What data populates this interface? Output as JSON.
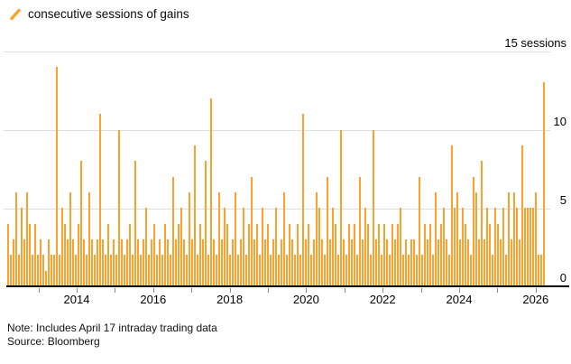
{
  "legend": {
    "label": "consecutive sessions of gains",
    "swatch_color": "#FCA12B",
    "swatch_icon": "slash-icon"
  },
  "axes": {
    "y_top_label": "15 sessions",
    "y_tick_labels": [
      "0",
      "5",
      "10"
    ],
    "x_tick_labels": [
      "2014",
      "2016",
      "2018",
      "2020",
      "2022",
      "2024",
      "2026"
    ]
  },
  "footer": {
    "note": "Note: Includes April 17 intraday trading data",
    "source": "Source: Bloomberg"
  },
  "colors": {
    "bar": "#FCA12B",
    "gridline": "#dedede",
    "axis_line": "#000000",
    "tick": "#8a8a8a",
    "background": "#ffffff"
  },
  "chart_data": {
    "type": "bar",
    "title": "consecutive sessions of gains",
    "ylabel": "sessions",
    "ylim": [
      0,
      15
    ],
    "y_ticks": [
      0,
      5,
      10,
      15
    ],
    "grid": "horizontal",
    "legend_position": "top-left",
    "x_axis_years_ticks": [
      2013,
      2014,
      2015,
      2016,
      2017,
      2018,
      2019,
      2020,
      2021,
      2022,
      2023,
      2024,
      2025,
      2026
    ],
    "x_axis_year_labels": [
      2014,
      2016,
      2018,
      2020,
      2022,
      2024,
      2026
    ],
    "x_start_year": 2012.2,
    "x_step_years": 0.0708,
    "values": [
      4,
      2,
      3,
      6,
      2,
      5,
      3,
      6,
      4,
      2,
      4,
      2,
      3,
      2,
      1,
      3,
      2,
      2,
      14,
      2,
      5,
      4,
      3,
      6,
      3,
      2,
      4,
      8,
      3,
      2,
      6,
      3,
      2,
      3,
      11,
      3,
      2,
      4,
      2,
      3,
      2,
      10,
      3,
      2,
      3,
      4,
      2,
      8,
      3,
      2,
      3,
      5,
      2,
      3,
      4,
      2,
      3,
      2,
      4,
      3,
      2,
      7,
      3,
      4,
      5,
      3,
      2,
      6,
      3,
      9,
      2,
      4,
      3,
      8,
      2,
      12,
      3,
      2,
      6,
      3,
      5,
      4,
      2,
      3,
      6,
      2,
      3,
      5,
      2,
      4,
      7,
      3,
      4,
      2,
      5,
      3,
      4,
      2,
      3,
      5,
      2,
      3,
      6,
      2,
      4,
      3,
      2,
      4,
      2,
      11,
      3,
      4,
      2,
      3,
      6,
      5,
      3,
      2,
      7,
      3,
      5,
      4,
      2,
      10,
      3,
      2,
      4,
      3,
      4,
      2,
      7,
      3,
      5,
      4,
      2,
      10,
      3,
      4,
      2,
      4,
      3,
      2,
      4,
      3,
      4,
      5,
      2,
      3,
      2,
      3,
      3,
      2,
      7,
      2,
      4,
      3,
      4,
      2,
      6,
      3,
      4,
      5,
      3,
      2,
      9,
      5,
      6,
      3,
      5,
      4,
      3,
      2,
      7,
      6,
      3,
      8,
      3,
      5,
      4,
      2,
      5,
      4,
      3,
      5,
      2,
      6,
      3,
      6,
      5,
      3,
      9,
      5,
      5,
      5,
      5,
      6,
      2,
      2,
      13
    ],
    "notable_peaks": [
      {
        "year_approx": 2013.5,
        "sessions": 14
      },
      {
        "year_approx": 2014.6,
        "sessions": 11
      },
      {
        "year_approx": 2015.1,
        "sessions": 10
      },
      {
        "year_approx": 2017.5,
        "sessions": 12
      },
      {
        "year_approx": 2020.0,
        "sessions": 11
      },
      {
        "year_approx": 2020.9,
        "sessions": 10
      },
      {
        "year_approx": 2021.8,
        "sessions": 10
      },
      {
        "year_approx": 2023.8,
        "sessions": 9
      },
      {
        "year_approx": 2025.6,
        "sessions": 9
      },
      {
        "year_approx": 2026.3,
        "sessions": 13
      }
    ]
  }
}
